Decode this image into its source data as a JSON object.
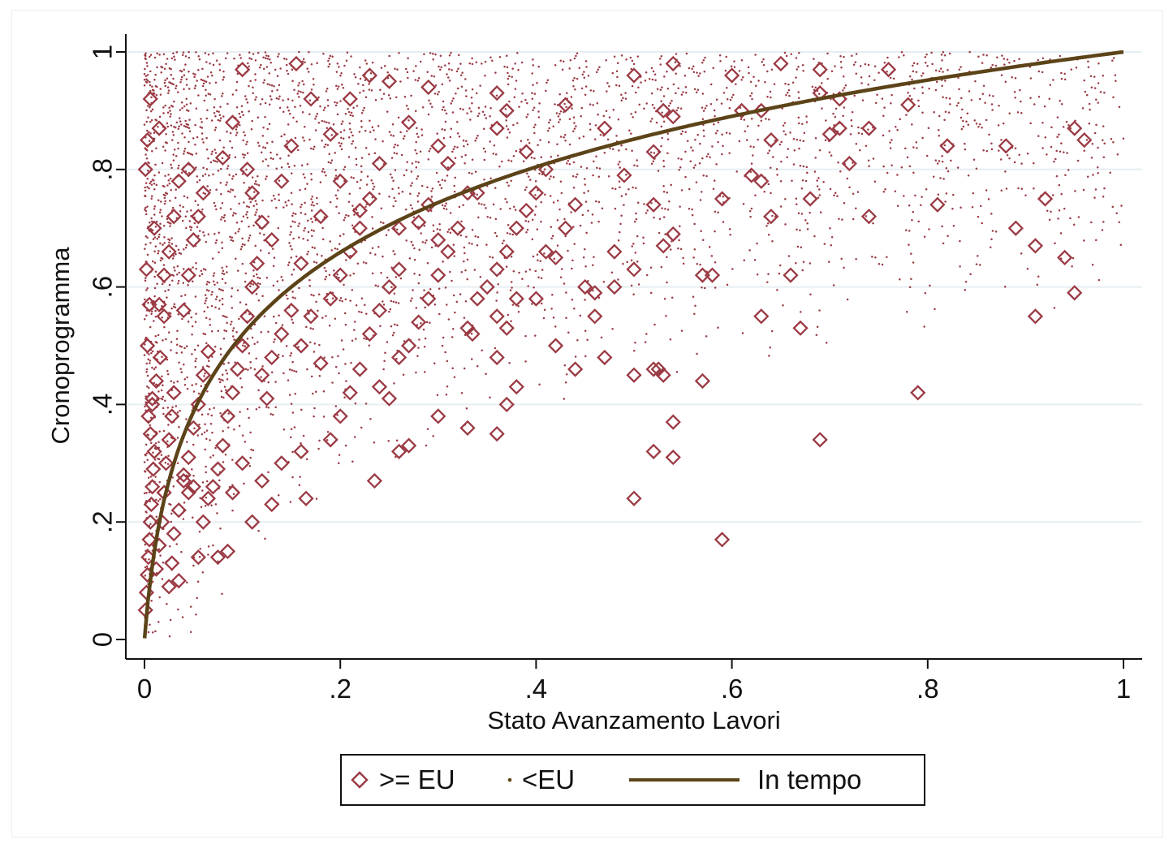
{
  "chart_data": {
    "type": "scatter",
    "xlabel": "Stato Avanzamento Lavori",
    "ylabel": "Cronoprogramma",
    "xlim": [
      0,
      1
    ],
    "ylim": [
      0,
      1
    ],
    "x_ticks": [
      "0",
      ".2",
      ".4",
      ".6",
      ".8",
      "1"
    ],
    "y_ticks": [
      "0",
      ".2",
      ".4",
      ".6",
      ".8",
      "1"
    ],
    "grid": "horizontal",
    "legend_position": "bottom",
    "colors": {
      "points": "#9b3a44",
      "line": "#5c4318"
    },
    "series": [
      {
        "name": ">= EU",
        "marker": "diamond",
        "points": [
          [
            0.001,
            0.05
          ],
          [
            0.002,
            0.08
          ],
          [
            0.003,
            0.11
          ],
          [
            0.004,
            0.14
          ],
          [
            0.005,
            0.17
          ],
          [
            0.006,
            0.2
          ],
          [
            0.007,
            0.23
          ],
          [
            0.008,
            0.26
          ],
          [
            0.009,
            0.29
          ],
          [
            0.01,
            0.32
          ],
          [
            0.006,
            0.35
          ],
          [
            0.004,
            0.38
          ],
          [
            0.008,
            0.41
          ],
          [
            0.012,
            0.44
          ],
          [
            0.003,
            0.5
          ],
          [
            0.005,
            0.57
          ],
          [
            0.002,
            0.63
          ],
          [
            0.001,
            0.8
          ],
          [
            0.003,
            0.85
          ],
          [
            0.006,
            0.92
          ],
          [
            0.012,
            0.12
          ],
          [
            0.015,
            0.16
          ],
          [
            0.018,
            0.2
          ],
          [
            0.02,
            0.25
          ],
          [
            0.022,
            0.3
          ],
          [
            0.025,
            0.34
          ],
          [
            0.028,
            0.38
          ],
          [
            0.03,
            0.42
          ],
          [
            0.016,
            0.48
          ],
          [
            0.02,
            0.55
          ],
          [
            0.035,
            0.22
          ],
          [
            0.04,
            0.27
          ],
          [
            0.045,
            0.31
          ],
          [
            0.05,
            0.36
          ],
          [
            0.055,
            0.4
          ],
          [
            0.06,
            0.45
          ],
          [
            0.065,
            0.49
          ],
          [
            0.07,
            0.26
          ],
          [
            0.075,
            0.29
          ],
          [
            0.08,
            0.33
          ],
          [
            0.04,
            0.56
          ],
          [
            0.045,
            0.62
          ],
          [
            0.05,
            0.68
          ],
          [
            0.055,
            0.72
          ],
          [
            0.06,
            0.76
          ],
          [
            0.035,
            0.78
          ],
          [
            0.045,
            0.8
          ],
          [
            0.03,
            0.72
          ],
          [
            0.025,
            0.66
          ],
          [
            0.015,
            0.87
          ],
          [
            0.085,
            0.38
          ],
          [
            0.09,
            0.42
          ],
          [
            0.095,
            0.46
          ],
          [
            0.1,
            0.5
          ],
          [
            0.105,
            0.55
          ],
          [
            0.11,
            0.6
          ],
          [
            0.115,
            0.64
          ],
          [
            0.12,
            0.45
          ],
          [
            0.125,
            0.41
          ],
          [
            0.13,
            0.48
          ],
          [
            0.09,
            0.88
          ],
          [
            0.1,
            0.97
          ],
          [
            0.105,
            0.8
          ],
          [
            0.11,
            0.76
          ],
          [
            0.08,
            0.82
          ],
          [
            0.12,
            0.71
          ],
          [
            0.13,
            0.68
          ],
          [
            0.14,
            0.78
          ],
          [
            0.15,
            0.84
          ],
          [
            0.155,
            0.98
          ],
          [
            0.14,
            0.52
          ],
          [
            0.15,
            0.56
          ],
          [
            0.16,
            0.5
          ],
          [
            0.17,
            0.55
          ],
          [
            0.18,
            0.47
          ],
          [
            0.19,
            0.58
          ],
          [
            0.2,
            0.62
          ],
          [
            0.21,
            0.66
          ],
          [
            0.22,
            0.7
          ],
          [
            0.23,
            0.75
          ],
          [
            0.17,
            0.92
          ],
          [
            0.19,
            0.86
          ],
          [
            0.21,
            0.92
          ],
          [
            0.23,
            0.96
          ],
          [
            0.25,
            0.95
          ],
          [
            0.24,
            0.81
          ],
          [
            0.2,
            0.78
          ],
          [
            0.22,
            0.73
          ],
          [
            0.18,
            0.72
          ],
          [
            0.16,
            0.64
          ],
          [
            0.1,
            0.3
          ],
          [
            0.09,
            0.25
          ],
          [
            0.11,
            0.2
          ],
          [
            0.12,
            0.27
          ],
          [
            0.13,
            0.23
          ],
          [
            0.14,
            0.3
          ],
          [
            0.16,
            0.32
          ],
          [
            0.165,
            0.24
          ],
          [
            0.085,
            0.15
          ],
          [
            0.075,
            0.14
          ],
          [
            0.06,
            0.2
          ],
          [
            0.055,
            0.14
          ],
          [
            0.065,
            0.24
          ],
          [
            0.05,
            0.26
          ],
          [
            0.045,
            0.25
          ],
          [
            0.04,
            0.28
          ],
          [
            0.035,
            0.1
          ],
          [
            0.028,
            0.13
          ],
          [
            0.03,
            0.18
          ],
          [
            0.025,
            0.09
          ],
          [
            0.19,
            0.34
          ],
          [
            0.2,
            0.38
          ],
          [
            0.21,
            0.42
          ],
          [
            0.22,
            0.46
          ],
          [
            0.23,
            0.52
          ],
          [
            0.24,
            0.56
          ],
          [
            0.25,
            0.6
          ],
          [
            0.26,
            0.63
          ],
          [
            0.24,
            0.43
          ],
          [
            0.25,
            0.41
          ],
          [
            0.235,
            0.27
          ],
          [
            0.26,
            0.32
          ],
          [
            0.27,
            0.33
          ],
          [
            0.26,
            0.48
          ],
          [
            0.27,
            0.5
          ],
          [
            0.28,
            0.54
          ],
          [
            0.29,
            0.58
          ],
          [
            0.3,
            0.62
          ],
          [
            0.31,
            0.66
          ],
          [
            0.32,
            0.7
          ],
          [
            0.27,
            0.88
          ],
          [
            0.29,
            0.94
          ],
          [
            0.3,
            0.84
          ],
          [
            0.31,
            0.81
          ],
          [
            0.33,
            0.76
          ],
          [
            0.34,
            0.76
          ],
          [
            0.29,
            0.74
          ],
          [
            0.28,
            0.71
          ],
          [
            0.26,
            0.7
          ],
          [
            0.3,
            0.68
          ],
          [
            0.3,
            0.38
          ],
          [
            0.33,
            0.36
          ],
          [
            0.36,
            0.35
          ],
          [
            0.37,
            0.4
          ],
          [
            0.38,
            0.43
          ],
          [
            0.36,
            0.48
          ],
          [
            0.335,
            0.52
          ],
          [
            0.33,
            0.53
          ],
          [
            0.34,
            0.58
          ],
          [
            0.35,
            0.6
          ],
          [
            0.36,
            0.63
          ],
          [
            0.37,
            0.66
          ],
          [
            0.38,
            0.7
          ],
          [
            0.39,
            0.73
          ],
          [
            0.4,
            0.76
          ],
          [
            0.41,
            0.8
          ],
          [
            0.36,
            0.93
          ],
          [
            0.37,
            0.9
          ],
          [
            0.39,
            0.83
          ],
          [
            0.36,
            0.87
          ],
          [
            0.36,
            0.55
          ],
          [
            0.37,
            0.53
          ],
          [
            0.38,
            0.58
          ],
          [
            0.4,
            0.58
          ],
          [
            0.41,
            0.66
          ],
          [
            0.42,
            0.65
          ],
          [
            0.43,
            0.7
          ],
          [
            0.44,
            0.74
          ],
          [
            0.45,
            0.6
          ],
          [
            0.46,
            0.59
          ],
          [
            0.42,
            0.5
          ],
          [
            0.44,
            0.46
          ],
          [
            0.46,
            0.55
          ],
          [
            0.47,
            0.48
          ],
          [
            0.48,
            0.6
          ],
          [
            0.48,
            0.66
          ],
          [
            0.47,
            0.87
          ],
          [
            0.43,
            0.91
          ],
          [
            0.5,
            0.63
          ],
          [
            0.49,
            0.79
          ],
          [
            0.5,
            0.96
          ],
          [
            0.52,
            0.83
          ],
          [
            0.54,
            0.98
          ],
          [
            0.54,
            0.89
          ],
          [
            0.53,
            0.9
          ],
          [
            0.53,
            0.67
          ],
          [
            0.54,
            0.69
          ],
          [
            0.52,
            0.74
          ],
          [
            0.5,
            0.45
          ],
          [
            0.52,
            0.46
          ],
          [
            0.525,
            0.46
          ],
          [
            0.53,
            0.45
          ],
          [
            0.52,
            0.32
          ],
          [
            0.54,
            0.31
          ],
          [
            0.54,
            0.37
          ],
          [
            0.5,
            0.24
          ],
          [
            0.57,
            0.44
          ],
          [
            0.58,
            0.62
          ],
          [
            0.57,
            0.62
          ],
          [
            0.59,
            0.17
          ],
          [
            0.59,
            0.75
          ],
          [
            0.6,
            0.96
          ],
          [
            0.61,
            0.9
          ],
          [
            0.63,
            0.9
          ],
          [
            0.62,
            0.79
          ],
          [
            0.63,
            0.78
          ],
          [
            0.64,
            0.72
          ],
          [
            0.63,
            0.55
          ],
          [
            0.64,
            0.85
          ],
          [
            0.65,
            0.98
          ],
          [
            0.66,
            0.62
          ],
          [
            0.67,
            0.53
          ],
          [
            0.68,
            0.75
          ],
          [
            0.69,
            0.97
          ],
          [
            0.69,
            0.93
          ],
          [
            0.7,
            0.86
          ],
          [
            0.71,
            0.87
          ],
          [
            0.72,
            0.81
          ],
          [
            0.71,
            0.92
          ],
          [
            0.69,
            0.34
          ],
          [
            0.74,
            0.72
          ],
          [
            0.74,
            0.87
          ],
          [
            0.76,
            0.97
          ],
          [
            0.78,
            0.91
          ],
          [
            0.79,
            0.42
          ],
          [
            0.81,
            0.74
          ],
          [
            0.82,
            0.84
          ],
          [
            0.88,
            0.84
          ],
          [
            0.89,
            0.7
          ],
          [
            0.91,
            0.55
          ],
          [
            0.91,
            0.67
          ],
          [
            0.92,
            0.75
          ],
          [
            0.94,
            0.65
          ],
          [
            0.95,
            0.59
          ],
          [
            0.95,
            0.87
          ],
          [
            0.96,
            0.85
          ],
          [
            0.015,
            0.57
          ],
          [
            0.02,
            0.62
          ],
          [
            0.01,
            0.7
          ],
          [
            0.008,
            0.4
          ]
        ]
      },
      {
        "name": "<EU",
        "marker": "dot"
      },
      {
        "name": "In tempo",
        "marker": "line",
        "function": "y = ln(1 + 99x) / ln(100)"
      }
    ]
  },
  "legend": {
    "items": [
      ">= EU",
      "<EU",
      "In tempo"
    ]
  }
}
